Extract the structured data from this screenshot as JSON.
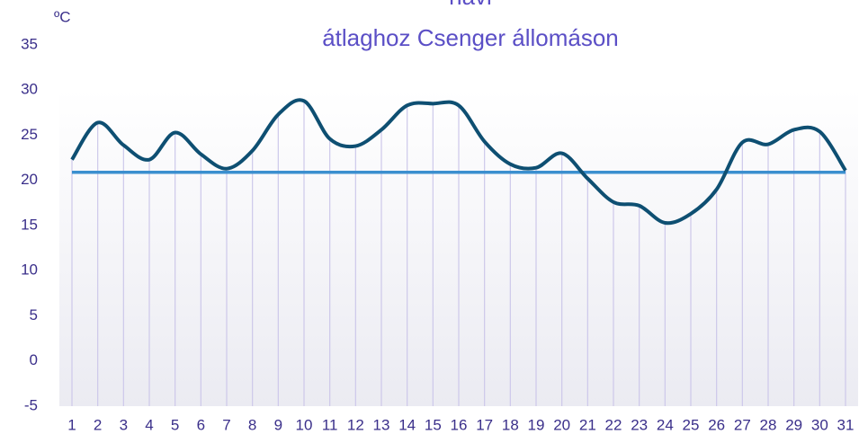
{
  "chart_data": {
    "type": "line",
    "title": [
      "havi",
      "átlaghoz Csenger állomáson"
    ],
    "y_label": "ºC",
    "categories": [
      "1",
      "2",
      "3",
      "4",
      "5",
      "6",
      "7",
      "8",
      "9",
      "10",
      "11",
      "12",
      "13",
      "14",
      "15",
      "16",
      "17",
      "18",
      "19",
      "20",
      "21",
      "22",
      "23",
      "24",
      "25",
      "26",
      "27",
      "28",
      "29",
      "30",
      "31"
    ],
    "series": [
      {
        "color": "#0e4f72",
        "values": [
          22.3,
          26.4,
          23.9,
          22.3,
          25.3,
          22.9,
          21.3,
          23.3,
          27.3,
          28.8,
          24.6,
          23.8,
          25.6,
          28.3,
          28.5,
          28.3,
          24.3,
          21.8,
          21.4,
          23.0,
          20.2,
          17.6,
          17.2,
          15.3,
          16.3,
          19.0,
          24.2,
          24.0,
          25.6,
          25.4,
          21.1
        ]
      },
      {
        "color": "#3b8fcf",
        "values": [
          20.9,
          20.9,
          20.9,
          20.9,
          20.9,
          20.9,
          20.9,
          20.9,
          20.9,
          20.9,
          20.9,
          20.9,
          20.9,
          20.9,
          20.9,
          20.9,
          20.9,
          20.9,
          20.9,
          20.9,
          20.9,
          20.9,
          20.9,
          20.9,
          20.9,
          20.9,
          20.9,
          20.9,
          20.9,
          20.9,
          20.9
        ]
      }
    ],
    "ylim": [
      -5,
      35
    ],
    "yticks": [
      -5,
      0,
      5,
      10,
      15,
      20,
      25,
      30,
      35
    ],
    "drop_lines": true,
    "drop_line_color": "#cdc8ea"
  }
}
